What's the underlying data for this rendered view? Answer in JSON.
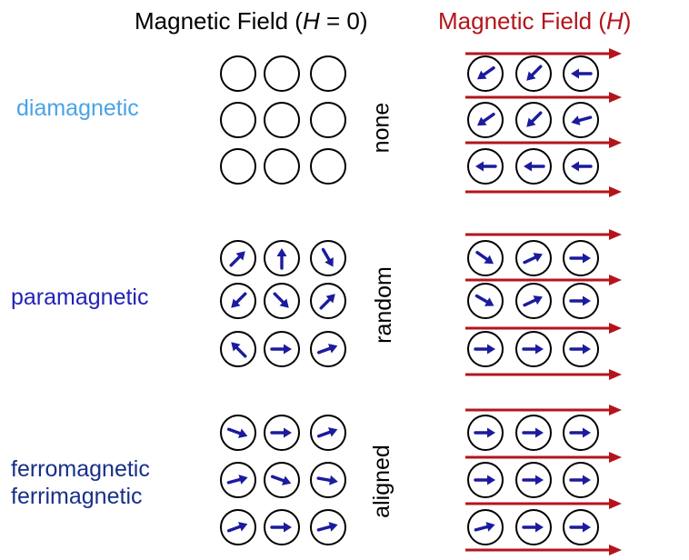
{
  "header": {
    "left_prefix": "Magnetic Field (",
    "left_var": "H",
    "left_suffix": " = 0)",
    "right_prefix": "Magnetic Field (",
    "right_var": "H",
    "right_suffix": ")"
  },
  "colors": {
    "field": "#b3151b",
    "spin": "#1b1b9e",
    "diamagnetic": "#4aa3e6",
    "paramagnetic": "#2323b8",
    "ferro": "#17308a"
  },
  "rows": [
    {
      "labels": [
        "diamagnetic"
      ],
      "state": "none",
      "zero_field_angles": [
        null,
        null,
        null,
        null,
        null,
        null,
        null,
        null,
        null
      ],
      "applied_field_angles": [
        215,
        225,
        180,
        215,
        225,
        195,
        180,
        180,
        180
      ]
    },
    {
      "labels": [
        "paramagnetic"
      ],
      "state": "random",
      "zero_field_angles": [
        45,
        90,
        -60,
        225,
        -45,
        45,
        135,
        0,
        20
      ],
      "applied_field_angles": [
        -35,
        25,
        0,
        -30,
        25,
        0,
        0,
        0,
        0
      ]
    },
    {
      "labels": [
        "ferromagnetic",
        "ferrimagnetic"
      ],
      "state": "aligned",
      "zero_field_angles": [
        -20,
        0,
        20,
        15,
        -20,
        -10,
        20,
        0,
        15
      ],
      "applied_field_angles": [
        0,
        0,
        0,
        0,
        0,
        0,
        15,
        0,
        0
      ]
    }
  ]
}
